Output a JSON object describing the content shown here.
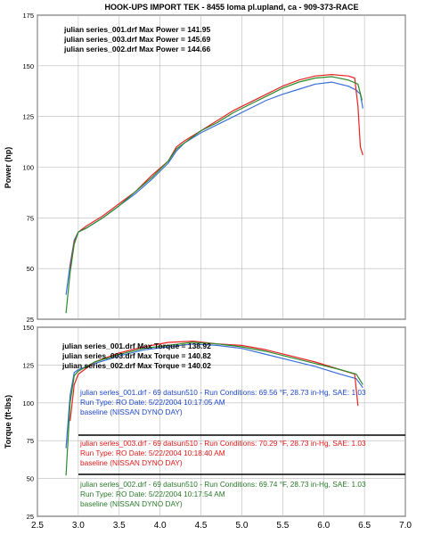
{
  "chart_data": [
    {
      "type": "line",
      "title": "HOOK-UPS IMPORT TEK - 8455 loma pl.upland, ca - 909-373-RACE",
      "ylabel": "Power (hp)",
      "xlim": [
        2.5,
        7.0
      ],
      "ylim": [
        25,
        175
      ],
      "yticks": [
        "25",
        "50",
        "75",
        "100",
        "125",
        "150",
        "175"
      ],
      "grid": true,
      "annotations": [
        "julian series_001.drf Max Power = 141.95",
        "julian series_003.drf Max Power = 145.69",
        "julian series_002.drf Max Power = 144.66"
      ],
      "series": [
        {
          "name": "julian series_001.drf",
          "color": "#3a6fd8",
          "x": [
            2.85,
            2.9,
            2.95,
            3.0,
            3.1,
            3.3,
            3.5,
            3.7,
            3.9,
            4.1,
            4.2,
            4.3,
            4.5,
            4.7,
            4.9,
            5.1,
            5.3,
            5.5,
            5.7,
            5.9,
            6.1,
            6.3,
            6.4,
            6.45,
            6.48
          ],
          "y": [
            37,
            52,
            64,
            68,
            70,
            75,
            81,
            87,
            94,
            102,
            108,
            112,
            117,
            121,
            125,
            129,
            133,
            136,
            138.5,
            141,
            141.95,
            140,
            138,
            136,
            129
          ]
        },
        {
          "name": "julian series_003.drf",
          "color": "#e82020",
          "x": [
            2.9,
            2.95,
            3.0,
            3.1,
            3.3,
            3.5,
            3.7,
            3.9,
            4.1,
            4.2,
            4.3,
            4.5,
            4.7,
            4.9,
            5.1,
            5.3,
            5.5,
            5.7,
            5.9,
            6.1,
            6.3,
            6.38,
            6.42,
            6.45,
            6.48
          ],
          "y": [
            50,
            63,
            68,
            71,
            76,
            82,
            88,
            96,
            103,
            110,
            113,
            118,
            123,
            128,
            132,
            136,
            140,
            143,
            145,
            145.69,
            145,
            144,
            130,
            110,
            106
          ]
        },
        {
          "name": "julian series_002.drf",
          "color": "#2a8a2a",
          "x": [
            2.85,
            2.9,
            2.95,
            3.0,
            3.1,
            3.3,
            3.5,
            3.7,
            3.9,
            4.1,
            4.2,
            4.3,
            4.5,
            4.7,
            4.9,
            5.1,
            5.3,
            5.5,
            5.7,
            5.9,
            6.1,
            6.3,
            6.42,
            6.47
          ],
          "y": [
            28,
            48,
            62,
            68,
            70,
            75,
            81,
            88,
            95,
            103,
            109,
            112,
            118,
            122,
            127,
            131,
            135,
            139,
            142,
            144,
            144.66,
            143,
            141,
            133
          ]
        }
      ]
    },
    {
      "type": "line",
      "ylabel": "Torque (ft-lbs)",
      "xlabel": "",
      "xlim": [
        2.5,
        7.0
      ],
      "ylim": [
        25,
        150
      ],
      "xticks": [
        "2.5",
        "3.0",
        "3.5",
        "4.0",
        "4.5",
        "5.0",
        "5.5",
        "6.0",
        "6.5",
        "7.0"
      ],
      "yticks": [
        "25",
        "50",
        "75",
        "100",
        "125",
        "150"
      ],
      "grid": true,
      "annotations": [
        "julian series_001.drf Max Torque = 138.92",
        "julian series_003.drf Max Torque = 140.82",
        "julian series_002.drf Max Torque = 140.02"
      ],
      "series": [
        {
          "name": "julian series_001.drf",
          "color": "#3a6fd8",
          "x": [
            2.85,
            2.9,
            2.95,
            3.0,
            3.2,
            3.5,
            3.8,
            4.1,
            4.4,
            4.7,
            5.0,
            5.3,
            5.6,
            5.9,
            6.2,
            6.4,
            6.48
          ],
          "y": [
            70,
            105,
            120,
            122,
            126,
            131,
            135,
            137,
            138.92,
            138,
            136,
            132,
            128,
            124,
            119,
            116,
            110
          ]
        },
        {
          "name": "julian series_003.drf",
          "color": "#e82020",
          "x": [
            2.9,
            2.95,
            3.0,
            3.2,
            3.5,
            3.8,
            4.1,
            4.4,
            4.7,
            5.0,
            5.3,
            5.6,
            5.9,
            6.2,
            6.38,
            6.42
          ],
          "y": [
            88,
            112,
            119,
            127,
            133,
            137,
            140,
            140.82,
            139,
            138,
            135,
            131,
            127,
            122,
            119,
            98
          ]
        },
        {
          "name": "julian series_002.drf",
          "color": "#2a8a2a",
          "x": [
            2.85,
            2.9,
            2.95,
            3.0,
            3.2,
            3.5,
            3.8,
            4.1,
            4.4,
            4.7,
            5.0,
            5.3,
            5.6,
            5.9,
            6.2,
            6.4,
            6.48
          ],
          "y": [
            52,
            100,
            118,
            121,
            127,
            132,
            136,
            138,
            140.02,
            139,
            137,
            134,
            130,
            126,
            122,
            119,
            112
          ]
        }
      ]
    }
  ],
  "legend_runs": [
    {
      "name": "julian serles_001.drf",
      "color": "#1f48c8",
      "line1": "julian serles_001.drf - 69 datsun510  - Run Conditions: 69.56 °F, 28.73 in-Hg, SAE: 1.03",
      "line2": "Run Type: RO  Date: 5/22/2004 10:17:05 AM",
      "line3": "baseline (NISSAN DYNO DAY)"
    },
    {
      "name": "julian serles_003.drf",
      "color": "#e01818",
      "line1": "julian serles_003.drf - 69 datsun510  - Run Conditions: 70.29 °F, 28.73 in-Hg, SAE: 1.03",
      "line2": "Run Type: RO  Date: 5/22/2004 10:18:40 AM",
      "line3": "baseline (NISSAN DYNO DAY)"
    },
    {
      "name": "julian serles_002.drf",
      "color": "#2a7a2a",
      "line1": "julian serles_002.drf - 69 datsun510  - Run Conditions: 69.74 °F, 28.73 in-Hg, SAE: 1.03",
      "line2": "Run Type: RO  Date: 5/22/2004 10:17:54 AM",
      "line3": "baseline (NISSAN DYNO DAY)"
    }
  ]
}
